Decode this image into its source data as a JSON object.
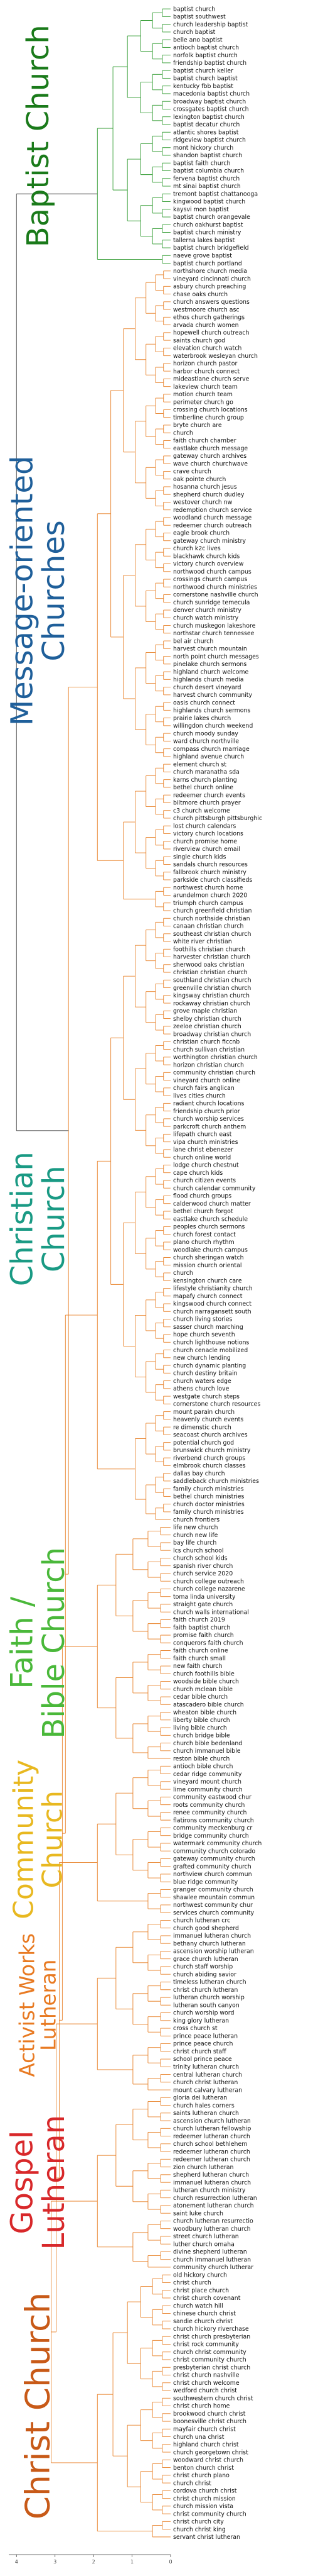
{
  "chart_data": {
    "type": "dendrogram",
    "orientation": "horizontal",
    "x_ticks": [
      "4",
      "3",
      "2",
      "1",
      "0"
    ],
    "colors": {
      "baptist": "#2e9a2e",
      "other": "#e8822a",
      "axis": "#444444"
    },
    "clusters": [
      {
        "name": "Baptist Church",
        "color": "#1a7a1a",
        "line_color": "#2e9a2e",
        "leaves": [
          "baptist church",
          "baptist southwest",
          "church leadership baptist",
          "church baptist",
          "belle ano baptist",
          "antioch baptist church",
          "norfolk baptist church",
          "friendship baptist church",
          "baptist church keller",
          "baptist church baptist",
          "kentucky fbb baptist",
          "macedonia baptist church",
          "broadway baptist church",
          "crossgates baptist church",
          "lexington baptist church",
          "baptist decatur church",
          "atlantic shores baptist",
          "ridgeview baptist church",
          "mont hickory church",
          "shandon baptist church",
          "baptist faith church",
          "baptist columbia church",
          "fervena baptist church",
          "mt sinai baptist church",
          "tremont baptist chattanooga",
          "kingwood baptist church",
          "kaysvi mon baptist",
          "baptist church orangevale",
          "church oakhurst baptist",
          "baptist church ministry",
          "tallerna lakes baptist",
          "baptist church bridgefield",
          "naeve grove baptist",
          "baptist church portland"
        ]
      },
      {
        "name": "Message-oriented Churches",
        "color": "#1f5f9a",
        "line_color": "#e8822a",
        "leaves": [
          "northshore church media",
          "vineyard cincinnati church",
          "asbury church preaching",
          "chase oaks church",
          "church answers questions",
          "westmoore church asc",
          "ethos church gatherings",
          "arvada church women",
          "hopewell church outreach",
          "saints church god",
          "elevation church watch",
          "waterbrook wesleyan church",
          "horizon church pastor",
          "harbor church connect",
          "mideastlane church serve",
          "lakeview church team",
          "motion church team",
          "perimeter church go",
          "crossing church locations",
          "timberline church group",
          "bryte church are",
          "church",
          "faith church chamber",
          "eastlake church message",
          "gateway church archives",
          "wave church churchwave",
          "crave church",
          "oak pointe church",
          "hosanna church jesus",
          "shepherd church dudley",
          "westover church nw",
          "redemption church service",
          "woodland church message",
          "redeemer church outreach",
          "eagle brook church",
          "gateway church ministry",
          "church k2c lives",
          "blackhawk church kids",
          "victory church overview",
          "northwood church campus",
          "crossings church campus",
          "northwood church ministries",
          "cornerstone nashville church",
          "church sunridge temecula",
          "denver church ministry",
          "church watch ministry",
          "church muskegon lakeshore",
          "northstar church tennessee",
          "bel air church",
          "harvest church mountain",
          "north point church messages",
          "pinelake church sermons",
          "highland church welcome",
          "highlands church media",
          "church desert vineyard",
          "harvest church community",
          "oasis church connect",
          "highlands church sermons",
          "prairie lakes church",
          "willingdon church weekend",
          "church moody sunday",
          "ward church northville",
          "compass church marriage",
          "highland avenue church",
          "element church st",
          "church maranatha sda",
          "karns church planting",
          "bethel church online",
          "redeemer church events",
          "biltmore church prayer",
          "c3 church welcome",
          "church pittsburgh pittsburghic",
          "lost church calendars",
          "victory church locations",
          "church promise home",
          "riverview church email",
          "single church kids",
          "sandals church resources",
          "fallbrook church ministry",
          "parkside church classifieds",
          "northwest church home",
          "arundelmon church 2020",
          "triumph church campus",
          "church greenfield christian"
        ]
      },
      {
        "name": "Christian Church",
        "color": "#1a9a84",
        "line_color": "#e8822a",
        "leaves": [
          "church northside christian",
          "canaan christian church",
          "southeast christian church",
          "white river christian",
          "foothills christian church",
          "harvester christian church",
          "sherwood oaks christian",
          "christian christian church",
          "southland christian church",
          "greenville christian church",
          "kingsway christian church",
          "rockaway christian church",
          "grove maple christian",
          "shelby christian church",
          "zeeloe christian church",
          "broadway christian church",
          "christian church ficcnb",
          "church sullivan christian",
          "worthington christian church",
          "horizon christian church",
          "community christian church",
          "vineyard church online",
          "church fairs anglican",
          "lives cities church",
          "radiant church locations",
          "friendship church prior",
          "church worship services",
          "parkcroft church anthem",
          "lifepath church east",
          "vipa church ministries",
          "lane christ ebenezer",
          "church online world",
          "lodge church chestnut",
          "cape church kids",
          "church citizen events",
          "church calendar community",
          "flood church groups",
          "calderwood church matter",
          "bethel church forgot",
          "eastlake church schedule",
          "peoples church sermons",
          "church forest contact",
          "plano church rhythm",
          "woodlake church campus",
          "church sheringan watch",
          "mission church oriental",
          "church",
          "kensington church care",
          "lifestyle christianity church",
          "mapafy church connect",
          "kingswood church connect",
          "church narragansett south",
          "church living stories",
          "sasser church marching",
          "hope church seventh",
          "church lighthouse notions",
          "church cenacle mobilized",
          "new church lending",
          "church dynamic planting",
          "church destiny britain",
          "church waters edge",
          "athens church love",
          "westgate church steps",
          "cornerstone church resources",
          "mount parain church",
          "heavenly church events",
          "re dimenstic church",
          "seacoast church archives",
          "potential church god",
          "brunswick church ministry",
          "riverbend church groups",
          "elmbrook church classes",
          "dallas bay church",
          "saddleback church ministries",
          "family church ministries",
          "bethel church ministries",
          "church doctor ministries",
          "family church ministries",
          "church frontiers"
        ]
      },
      {
        "name": "Faith / Bible Church",
        "color": "#4ab83a",
        "line_color": "#e8822a",
        "leaves": [
          "life new church",
          "church new life",
          "bay life church",
          "lcs church school",
          "church school kids",
          "spanish river church",
          "church service 2020",
          "church college outreach",
          "church college nazarene",
          "toma linda university",
          "straight gate church",
          "church walls international",
          "faith church 2019",
          "faith baptist church",
          "promise faith church",
          "conquerors faith church",
          "faith church online",
          "faith church small",
          "new faith church",
          "church foothills bible",
          "woodside bible church",
          "church mclean bible",
          "cedar bible church",
          "atascadero bible church",
          "wheaton bible church",
          "liberty bible church",
          "living bible church",
          "church bridge bible",
          "church bible bedenland",
          "church immanuel bible",
          "reston bible church"
        ]
      },
      {
        "name": "Community Church",
        "color": "#e8b820",
        "line_color": "#e8822a",
        "leaves": [
          "antioch bible church",
          "cedar ridge community",
          "vineyard mount church",
          "lime community church",
          "community eastwood chur",
          "roots community church",
          "renee community church",
          "flatirons community church",
          "community meckenburg cr",
          "bridge community church",
          "watermark community church",
          "community church colorado",
          "gateway community church",
          "grafted community church",
          "northview church commun",
          "blue ridge community",
          "granger community church",
          "shawlee mountain commun",
          "northwest community chur",
          "services church community"
        ]
      },
      {
        "name": "Activist Works Lutheran",
        "color": "#e87a22",
        "line_color": "#e8822a",
        "leaves": [
          "church lutheran crc",
          "church good shepherd",
          "immanuel lutheran church",
          "bethany church lutheran",
          "ascension worship lutheran",
          "grace church lutheran",
          "church staff worship",
          "church abiding savior",
          "timeless lutheran church",
          "christ church lutheran",
          "lutheran church worship",
          "lutheran south canyon",
          "church worship word",
          "king glory lutheran",
          "cross church st",
          "prince peace lutheran",
          "prince peace church",
          "christ church staff",
          "school prince peace",
          "trinity lutheran church",
          "central lutheran church",
          "church christ lutheran",
          "mount calvary lutheran"
        ]
      },
      {
        "name": "Gospel Lutheran",
        "color": "#d8282a",
        "line_color": "#e8822a",
        "leaves": [
          "gloria dei lutheran",
          "church hales corners",
          "saints lutheran church",
          "ascension church lutheran",
          "church lutheran fellowship",
          "redeemer lutheran church",
          "church school bethlehem",
          "redeemer lutheran church",
          "redeemer lutheran church",
          "zion church lutheran",
          "shepherd lutheran church",
          "immanuel lutheran church",
          "lutheran church ministry",
          "church resurrection lutheran",
          "atonement lutheran church",
          "saint luke church",
          "church lutheran resurrectio",
          "woodbury lutheran church",
          "street church lutheran",
          "luther church omaha",
          "divine shepherd lutheran",
          "church immanuel lutheran",
          "community church lutherar"
        ]
      },
      {
        "name": "Christ Church",
        "color": "#c85a18",
        "line_color": "#e8822a",
        "leaves": [
          "old hickory church",
          "christ church",
          "christ place church",
          "christ church covenant",
          "church watch hill",
          "chinese church christ",
          "sandie church christ",
          "church hickory riverchase",
          "christ church presbyterian",
          "christ rock community",
          "church christ community",
          "christ community church",
          "presbyterian christ church",
          "christ church nashville",
          "christ church welcome",
          "wedford church christ",
          "southwestern church christ",
          "christ church home",
          "brookwood church christ",
          "boonesville christ church",
          "mayfair church christ",
          "church una christ",
          "highland church christ",
          "church georgetown christ",
          "woodward christ church",
          "benton church christ",
          "christ church plano",
          "church christ",
          "cordova church christ",
          "christ church mission",
          "church mission vista",
          "christ community church",
          "christ church city",
          "church christ king",
          "servant christ lutheran"
        ]
      }
    ]
  }
}
